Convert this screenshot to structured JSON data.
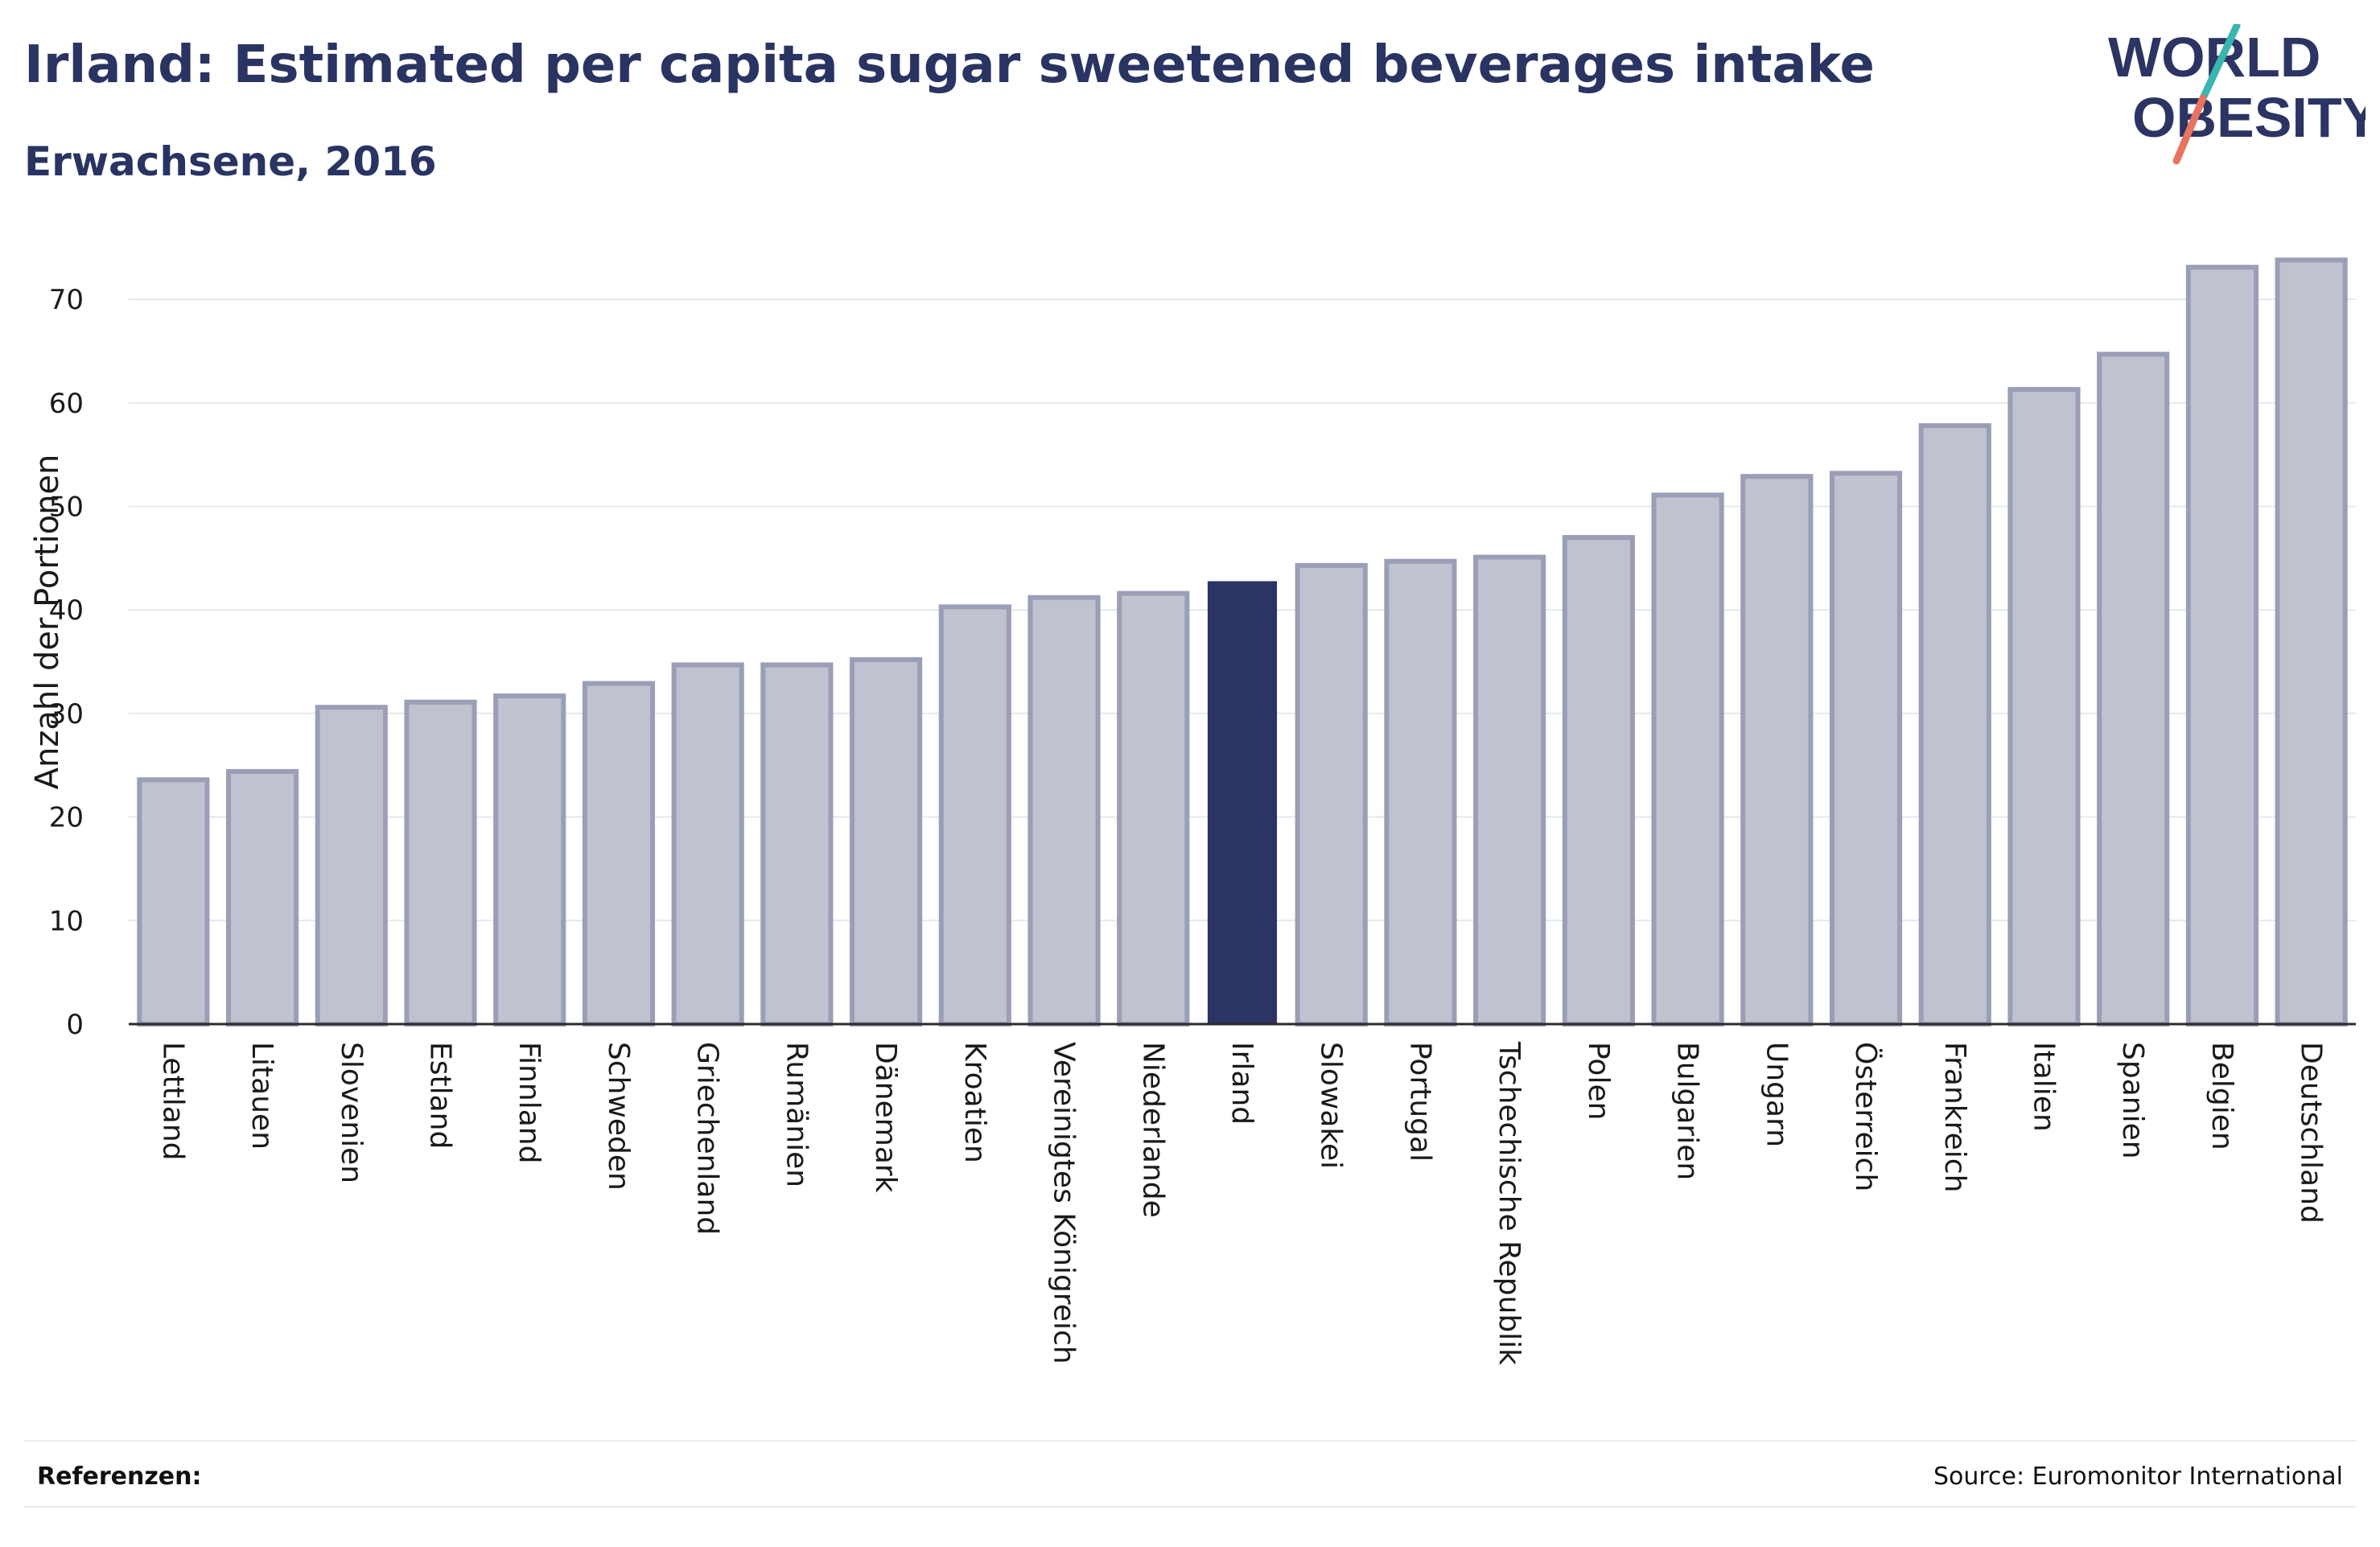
{
  "header": {
    "title": "Irland: Estimated per capita sugar sweetened beverages intake",
    "subtitle": "Erwachsene, 2016"
  },
  "logo": {
    "line1": "WORLD",
    "line2": "OBESITY"
  },
  "footer": {
    "references_label": "Referenzen:",
    "source": "Source: Euromonitor International"
  },
  "colors": {
    "highlight": "#2b3462",
    "bar_fill": "#c0c2cf",
    "bar_edge": "#9a9eb6",
    "logo_teal": "#3ab5b0",
    "logo_coral": "#e8735f"
  },
  "chart_data": {
    "type": "bar",
    "title": "Irland: Estimated per capita sugar sweetened beverages intake",
    "subtitle": "Erwachsene, 2016",
    "xlabel": "",
    "ylabel": "Anzahl der Portionen",
    "ylim": [
      0,
      75
    ],
    "yticks": [
      0,
      10,
      20,
      30,
      40,
      50,
      60,
      70
    ],
    "grid": true,
    "highlight": "Irland",
    "categories": [
      "Lettland",
      "Litauen",
      "Slovenien",
      "Estland",
      "Finnland",
      "Schweden",
      "Griechenland",
      "Rumänien",
      "Dänemark",
      "Kroatien",
      "Vereinigtes Königreich",
      "Niederlande",
      "Irland",
      "Slowakei",
      "Portugal",
      "Tschechische Republik",
      "Polen",
      "Bulgarien",
      "Ungarn",
      "Österreich",
      "Frankreich",
      "Italien",
      "Spanien",
      "Belgien",
      "Deutschland"
    ],
    "values": [
      23.6,
      24.4,
      30.6,
      31.1,
      31.7,
      32.9,
      34.7,
      34.7,
      35.2,
      40.3,
      41.2,
      41.6,
      42.7,
      44.3,
      44.7,
      45.1,
      47.0,
      51.1,
      52.9,
      53.2,
      57.8,
      61.3,
      64.7,
      73.1,
      73.8
    ]
  }
}
